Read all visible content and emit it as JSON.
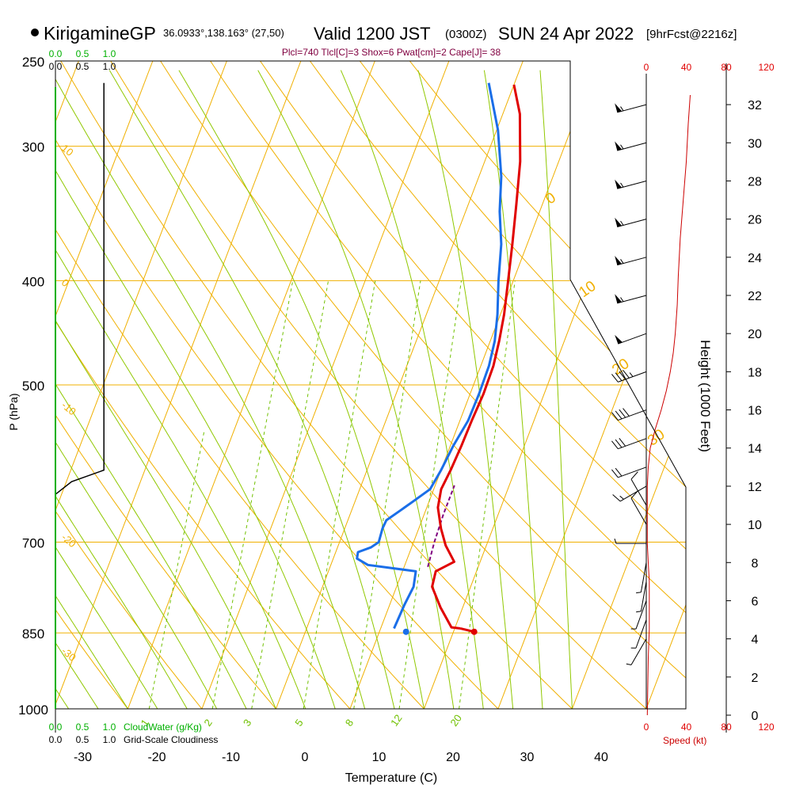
{
  "header": {
    "station": "KirigamineGP",
    "coords": "36.0933°,138.163° (27,50)",
    "valid": "Valid 1200 JST",
    "utc": "(0300Z)",
    "date": "SUN 24 Apr 2022",
    "forecast": "[9hrFcst@2216z]",
    "indices": "Plcl=740 Tlcl[C]=3 Shox=6 Pwat[cm]=2 Cape[J]= 38"
  },
  "colors": {
    "isotherm": "#f0b000",
    "dry_adiabat": "#f0b000",
    "moist_adiabat": "#90c800",
    "mixing_ratio": "#70c000",
    "temperature": "#e00000",
    "dewpoint": "#1a6ee8",
    "parcel": "#800080",
    "cloudwater": "#00b000",
    "cloudiness": "#000000",
    "wind_profile": "#cc0000"
  },
  "chart_data": {
    "type": "skew-T log-P sounding",
    "xlabel": "Temperature (C)",
    "ylabel": "P (hPa)",
    "y2label": "Height (1000 Feet)",
    "x_ticks": [
      -30,
      -20,
      -10,
      0,
      10,
      20,
      30,
      40
    ],
    "p_ticks": [
      250,
      300,
      400,
      500,
      700,
      850,
      1000
    ],
    "p_range": [
      250,
      1000
    ],
    "height_ticks": [
      0,
      2,
      4,
      6,
      8,
      10,
      12,
      14,
      16,
      18,
      20,
      22,
      24,
      26,
      28,
      30,
      32
    ],
    "height_range_kft": [
      0,
      33
    ],
    "speed_ticks": [
      0,
      40,
      80,
      120
    ],
    "speed_label": "Speed (kt)",
    "cloud_ticks": [
      0.0,
      0.5,
      1.0
    ],
    "cloudwater_label": "CloudWater (g/Kg)",
    "cloudiness_label": "Grid-Scale Cloudiness",
    "dry_adiabat_labels": [
      {
        "text": "10",
        "p": 300
      },
      {
        "text": "0",
        "p": 400
      },
      {
        "text": "-10",
        "p": 520
      },
      {
        "text": "-20",
        "p": 690
      },
      {
        "text": "-30",
        "p": 880
      }
    ],
    "moist_adiabat_labels": [
      {
        "text": "0",
        "p": 340
      },
      {
        "text": "10",
        "p": 415
      },
      {
        "text": "20",
        "p": 490
      },
      {
        "text": "30",
        "p": 570
      }
    ],
    "mixing_ratio_labels": [
      "1",
      "2",
      "3",
      "5",
      "8",
      "12",
      "20"
    ],
    "mixing_ratio_values": [
      1,
      2,
      3,
      5,
      8,
      12,
      20
    ],
    "temperature_profile": {
      "name": "Temperature",
      "points": [
        [
          842,
          20.8
        ],
        [
          840,
          19.5
        ],
        [
          805,
          17.0
        ],
        [
          770,
          14.8
        ],
        [
          745,
          14.5
        ],
        [
          730,
          16.5
        ],
        [
          705,
          14.5
        ],
        [
          680,
          13.0
        ],
        [
          650,
          11.5
        ],
        [
          625,
          11.0
        ],
        [
          600,
          11.3
        ],
        [
          570,
          11.5
        ],
        [
          540,
          11.6
        ],
        [
          510,
          11.8
        ],
        [
          480,
          11.7
        ],
        [
          455,
          11.2
        ],
        [
          430,
          10.5
        ],
        [
          400,
          9.3
        ],
        [
          370,
          8.0
        ],
        [
          340,
          6.5
        ],
        [
          310,
          4.8
        ],
        [
          280,
          2.3
        ],
        [
          263,
          0.0
        ]
      ]
    },
    "temperature_surface": {
      "p": 848,
      "t": 22.8
    },
    "dewpoint_profile": {
      "name": "Dewpoint",
      "points": [
        [
          842,
          11.8
        ],
        [
          800,
          12.0
        ],
        [
          770,
          12.3
        ],
        [
          745,
          11.8
        ],
        [
          735,
          5.0
        ],
        [
          725,
          3.2
        ],
        [
          715,
          3.0
        ],
        [
          708,
          4.5
        ],
        [
          700,
          5.3
        ],
        [
          680,
          5.1
        ],
        [
          668,
          5.2
        ],
        [
          655,
          6.5
        ],
        [
          640,
          8.0
        ],
        [
          625,
          9.5
        ],
        [
          600,
          10.0
        ],
        [
          570,
          10.4
        ],
        [
          540,
          11.1
        ],
        [
          510,
          11.2
        ],
        [
          480,
          11.1
        ],
        [
          455,
          10.6
        ],
        [
          430,
          9.6
        ],
        [
          400,
          8.0
        ],
        [
          370,
          6.5
        ],
        [
          345,
          4.6
        ],
        [
          320,
          3.0
        ],
        [
          290,
          0.2
        ],
        [
          262,
          -3.5
        ]
      ]
    },
    "dewpoint_surface": {
      "p": 848,
      "t": 13.6
    },
    "parcel_profile": {
      "name": "Parcel",
      "points": [
        [
          738,
          13.2
        ],
        [
          700,
          12.8
        ],
        [
          660,
          12.6
        ],
        [
          620,
          12.6
        ]
      ]
    },
    "cloudiness_profile": {
      "points": [
        [
          262,
          0.9
        ],
        [
          600,
          0.9
        ],
        [
          615,
          0.3
        ],
        [
          632,
          0.0
        ]
      ]
    },
    "wind_speed_profile": {
      "points": [
        [
          0.0,
          1
        ],
        [
          3.0,
          2
        ],
        [
          4.5,
          3
        ],
        [
          6.0,
          3
        ],
        [
          7.0,
          3
        ],
        [
          8.0,
          2
        ],
        [
          9.0,
          1
        ],
        [
          10.5,
          1
        ],
        [
          12.0,
          1
        ],
        [
          13.0,
          2
        ],
        [
          14.0,
          4
        ],
        [
          15.0,
          9
        ],
        [
          16.0,
          15
        ],
        [
          17.0,
          20
        ],
        [
          18.0,
          24
        ],
        [
          19.0,
          27
        ],
        [
          20.0,
          29
        ],
        [
          21.5,
          31
        ],
        [
          23.0,
          32
        ],
        [
          25.0,
          34
        ],
        [
          27.0,
          37
        ],
        [
          29.0,
          40
        ],
        [
          31.0,
          42
        ],
        [
          32.5,
          44
        ]
      ]
    },
    "wind_barbs": [
      {
        "h": 32.0,
        "speed": 55,
        "dir": 255
      },
      {
        "h": 30.0,
        "speed": 55,
        "dir": 255
      },
      {
        "h": 28.0,
        "speed": 55,
        "dir": 255
      },
      {
        "h": 26.0,
        "speed": 55,
        "dir": 255
      },
      {
        "h": 24.0,
        "speed": 55,
        "dir": 255
      },
      {
        "h": 22.0,
        "speed": 55,
        "dir": 255
      },
      {
        "h": 20.0,
        "speed": 50,
        "dir": 250
      },
      {
        "h": 18.0,
        "speed": 45,
        "dir": 250
      },
      {
        "h": 16.0,
        "speed": 40,
        "dir": 250
      },
      {
        "h": 14.5,
        "speed": 30,
        "dir": 250
      },
      {
        "h": 13.0,
        "speed": 20,
        "dir": 250
      },
      {
        "h": 12.0,
        "speed": 15,
        "dir": 240
      },
      {
        "h": 11.0,
        "speed": 10,
        "dir": 330
      },
      {
        "h": 10.0,
        "speed": 10,
        "dir": 330
      },
      {
        "h": 9.0,
        "speed": 5,
        "dir": 270
      },
      {
        "h": 8.0,
        "speed": 5,
        "dir": 190
      },
      {
        "h": 7.0,
        "speed": 5,
        "dir": 190
      },
      {
        "h": 6.0,
        "speed": 5,
        "dir": 200
      },
      {
        "h": 5.0,
        "speed": 5,
        "dir": 200
      },
      {
        "h": 4.0,
        "speed": 5,
        "dir": 210
      }
    ]
  }
}
